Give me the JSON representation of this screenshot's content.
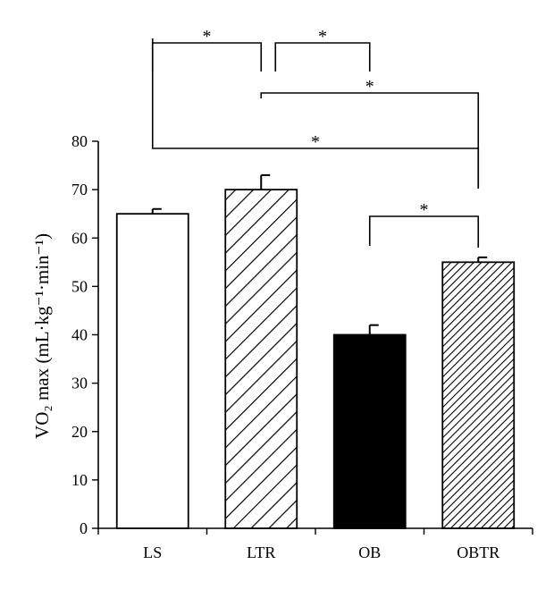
{
  "chart_data": {
    "type": "bar",
    "categories": [
      "LS",
      "LTR",
      "OB",
      "OBTR"
    ],
    "values": [
      65,
      70,
      40,
      55
    ],
    "errors": [
      1,
      3,
      2,
      1
    ],
    "patterns": [
      "white",
      "wide-diagonal-hatch",
      "solid-black",
      "dense-diagonal-hatch"
    ],
    "ylabel": "VO₂ max (mL·kg⁻¹·min⁻¹)",
    "ylim": [
      0,
      80
    ],
    "yticks": [
      0,
      10,
      20,
      30,
      40,
      50,
      60,
      70,
      80
    ],
    "grid": false,
    "significance": [
      {
        "from": "LS",
        "to": "LTR",
        "label": "*"
      },
      {
        "from": "LTR",
        "to": "OBTR",
        "label": "*"
      },
      {
        "from": "LTR",
        "to": "OB",
        "label": "*"
      },
      {
        "from": "LS",
        "to": "OBTR",
        "label": "*"
      },
      {
        "from": "OB",
        "to": "OBTR",
        "label": "*"
      }
    ]
  }
}
